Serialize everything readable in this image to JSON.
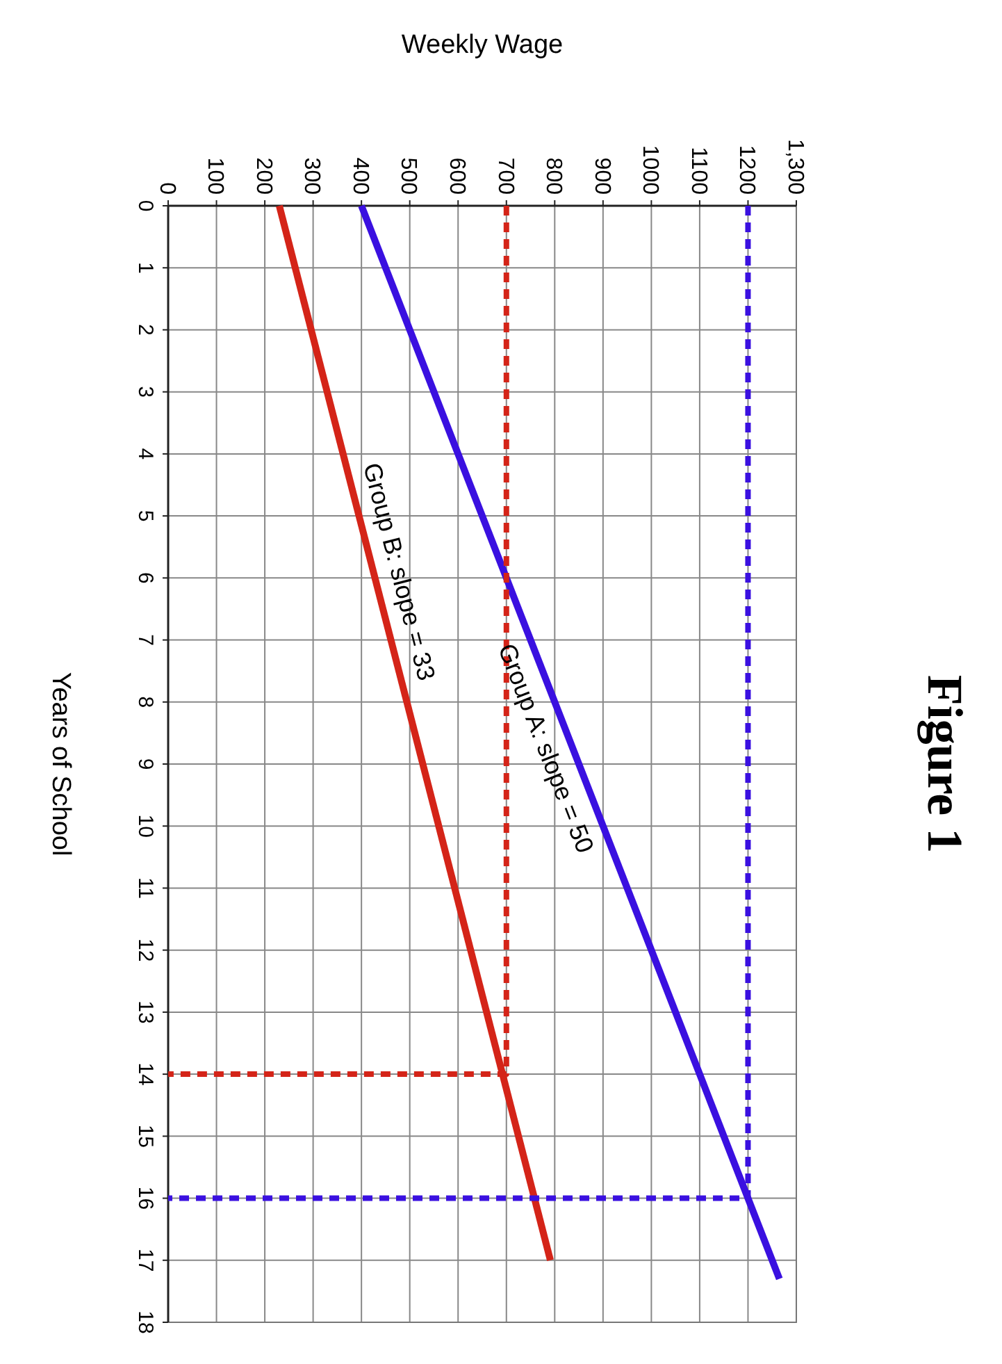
{
  "chart_data": {
    "type": "line",
    "title": "Figure 1",
    "xlabel": "Weekly Wage",
    "ylabel": "Years of School",
    "xlim": [
      0,
      1300
    ],
    "xticks": [
      0,
      100,
      200,
      300,
      400,
      500,
      600,
      700,
      800,
      900,
      1000,
      1100,
      1200,
      {
        "value": 1300,
        "label": "1,300"
      }
    ],
    "ylim": [
      18,
      0
    ],
    "yticks": [
      0,
      1,
      2,
      3,
      4,
      5,
      6,
      7,
      8,
      9,
      10,
      11,
      12,
      13,
      14,
      15,
      16,
      17,
      18
    ],
    "grid": true,
    "marker": "none",
    "line_style": "solid",
    "series": [
      {
        "color": "#3a10e0",
        "x": [
          400,
          1265
        ],
        "values": [
          0,
          17.3
        ]
      },
      {
        "color": "#d42418",
        "x": [
          230,
          791
        ],
        "values": [
          0,
          17
        ]
      },
      {
        "color": "#d42418",
        "x": [
          700,
          700,
          0
        ],
        "values": [
          0,
          14,
          14
        ],
        "line_style": "dashed"
      },
      {
        "color": "#3a10e0",
        "x": [
          1200,
          1200,
          0
        ],
        "values": [
          0,
          16,
          16
        ],
        "line_style": "dashed"
      }
    ],
    "annotations": [
      {
        "text": "Group A: slope = 50",
        "x": 830,
        "y": 8.6
      },
      {
        "text": "Group B: slope = 33",
        "x": 428,
        "y": 6
      }
    ]
  }
}
